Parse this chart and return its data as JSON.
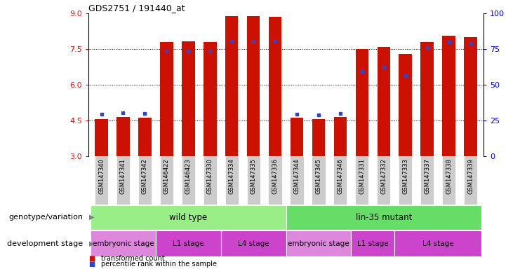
{
  "title": "GDS2751 / 191440_at",
  "samples": [
    "GSM147340",
    "GSM147341",
    "GSM147342",
    "GSM146422",
    "GSM146423",
    "GSM147330",
    "GSM147334",
    "GSM147335",
    "GSM147336",
    "GSM147344",
    "GSM147345",
    "GSM147346",
    "GSM147331",
    "GSM147332",
    "GSM147333",
    "GSM147337",
    "GSM147338",
    "GSM147339"
  ],
  "bar_values": [
    4.55,
    4.65,
    4.6,
    7.8,
    7.82,
    7.8,
    8.9,
    8.9,
    8.85,
    4.6,
    4.55,
    4.65,
    7.5,
    7.6,
    7.3,
    7.8,
    8.05,
    8.0
  ],
  "blue_dot_values": [
    4.75,
    4.82,
    4.78,
    7.42,
    7.42,
    7.42,
    7.82,
    7.82,
    7.82,
    4.75,
    4.73,
    4.78,
    6.55,
    6.75,
    6.38,
    7.55,
    7.8,
    7.75
  ],
  "ylim_left": [
    3,
    9
  ],
  "ylim_right": [
    0,
    100
  ],
  "yticks_left": [
    3,
    4.5,
    6,
    7.5,
    9
  ],
  "yticks_right": [
    0,
    25,
    50,
    75,
    100
  ],
  "bar_color": "#cc1100",
  "dot_color": "#3344cc",
  "genotype_groups": [
    {
      "text": "wild type",
      "start": 0,
      "end": 8,
      "color": "#99ee88"
    },
    {
      "text": "lin-35 mutant",
      "start": 9,
      "end": 17,
      "color": "#66dd66"
    }
  ],
  "stage_groups": [
    {
      "text": "embryonic stage",
      "start": 0,
      "end": 2,
      "color": "#dd88dd"
    },
    {
      "text": "L1 stage",
      "start": 3,
      "end": 5,
      "color": "#cc44cc"
    },
    {
      "text": "L4 stage",
      "start": 6,
      "end": 8,
      "color": "#cc44cc"
    },
    {
      "text": "embryonic stage",
      "start": 9,
      "end": 11,
      "color": "#dd88dd"
    },
    {
      "text": "L1 stage",
      "start": 12,
      "end": 13,
      "color": "#cc44cc"
    },
    {
      "text": "L4 stage",
      "start": 14,
      "end": 17,
      "color": "#cc44cc"
    }
  ],
  "legend": [
    {
      "label": "transformed count",
      "color": "#cc1100"
    },
    {
      "label": "percentile rank within the sample",
      "color": "#3344cc"
    }
  ],
  "genotype_label": "genotype/variation",
  "stage_label": "development stage"
}
